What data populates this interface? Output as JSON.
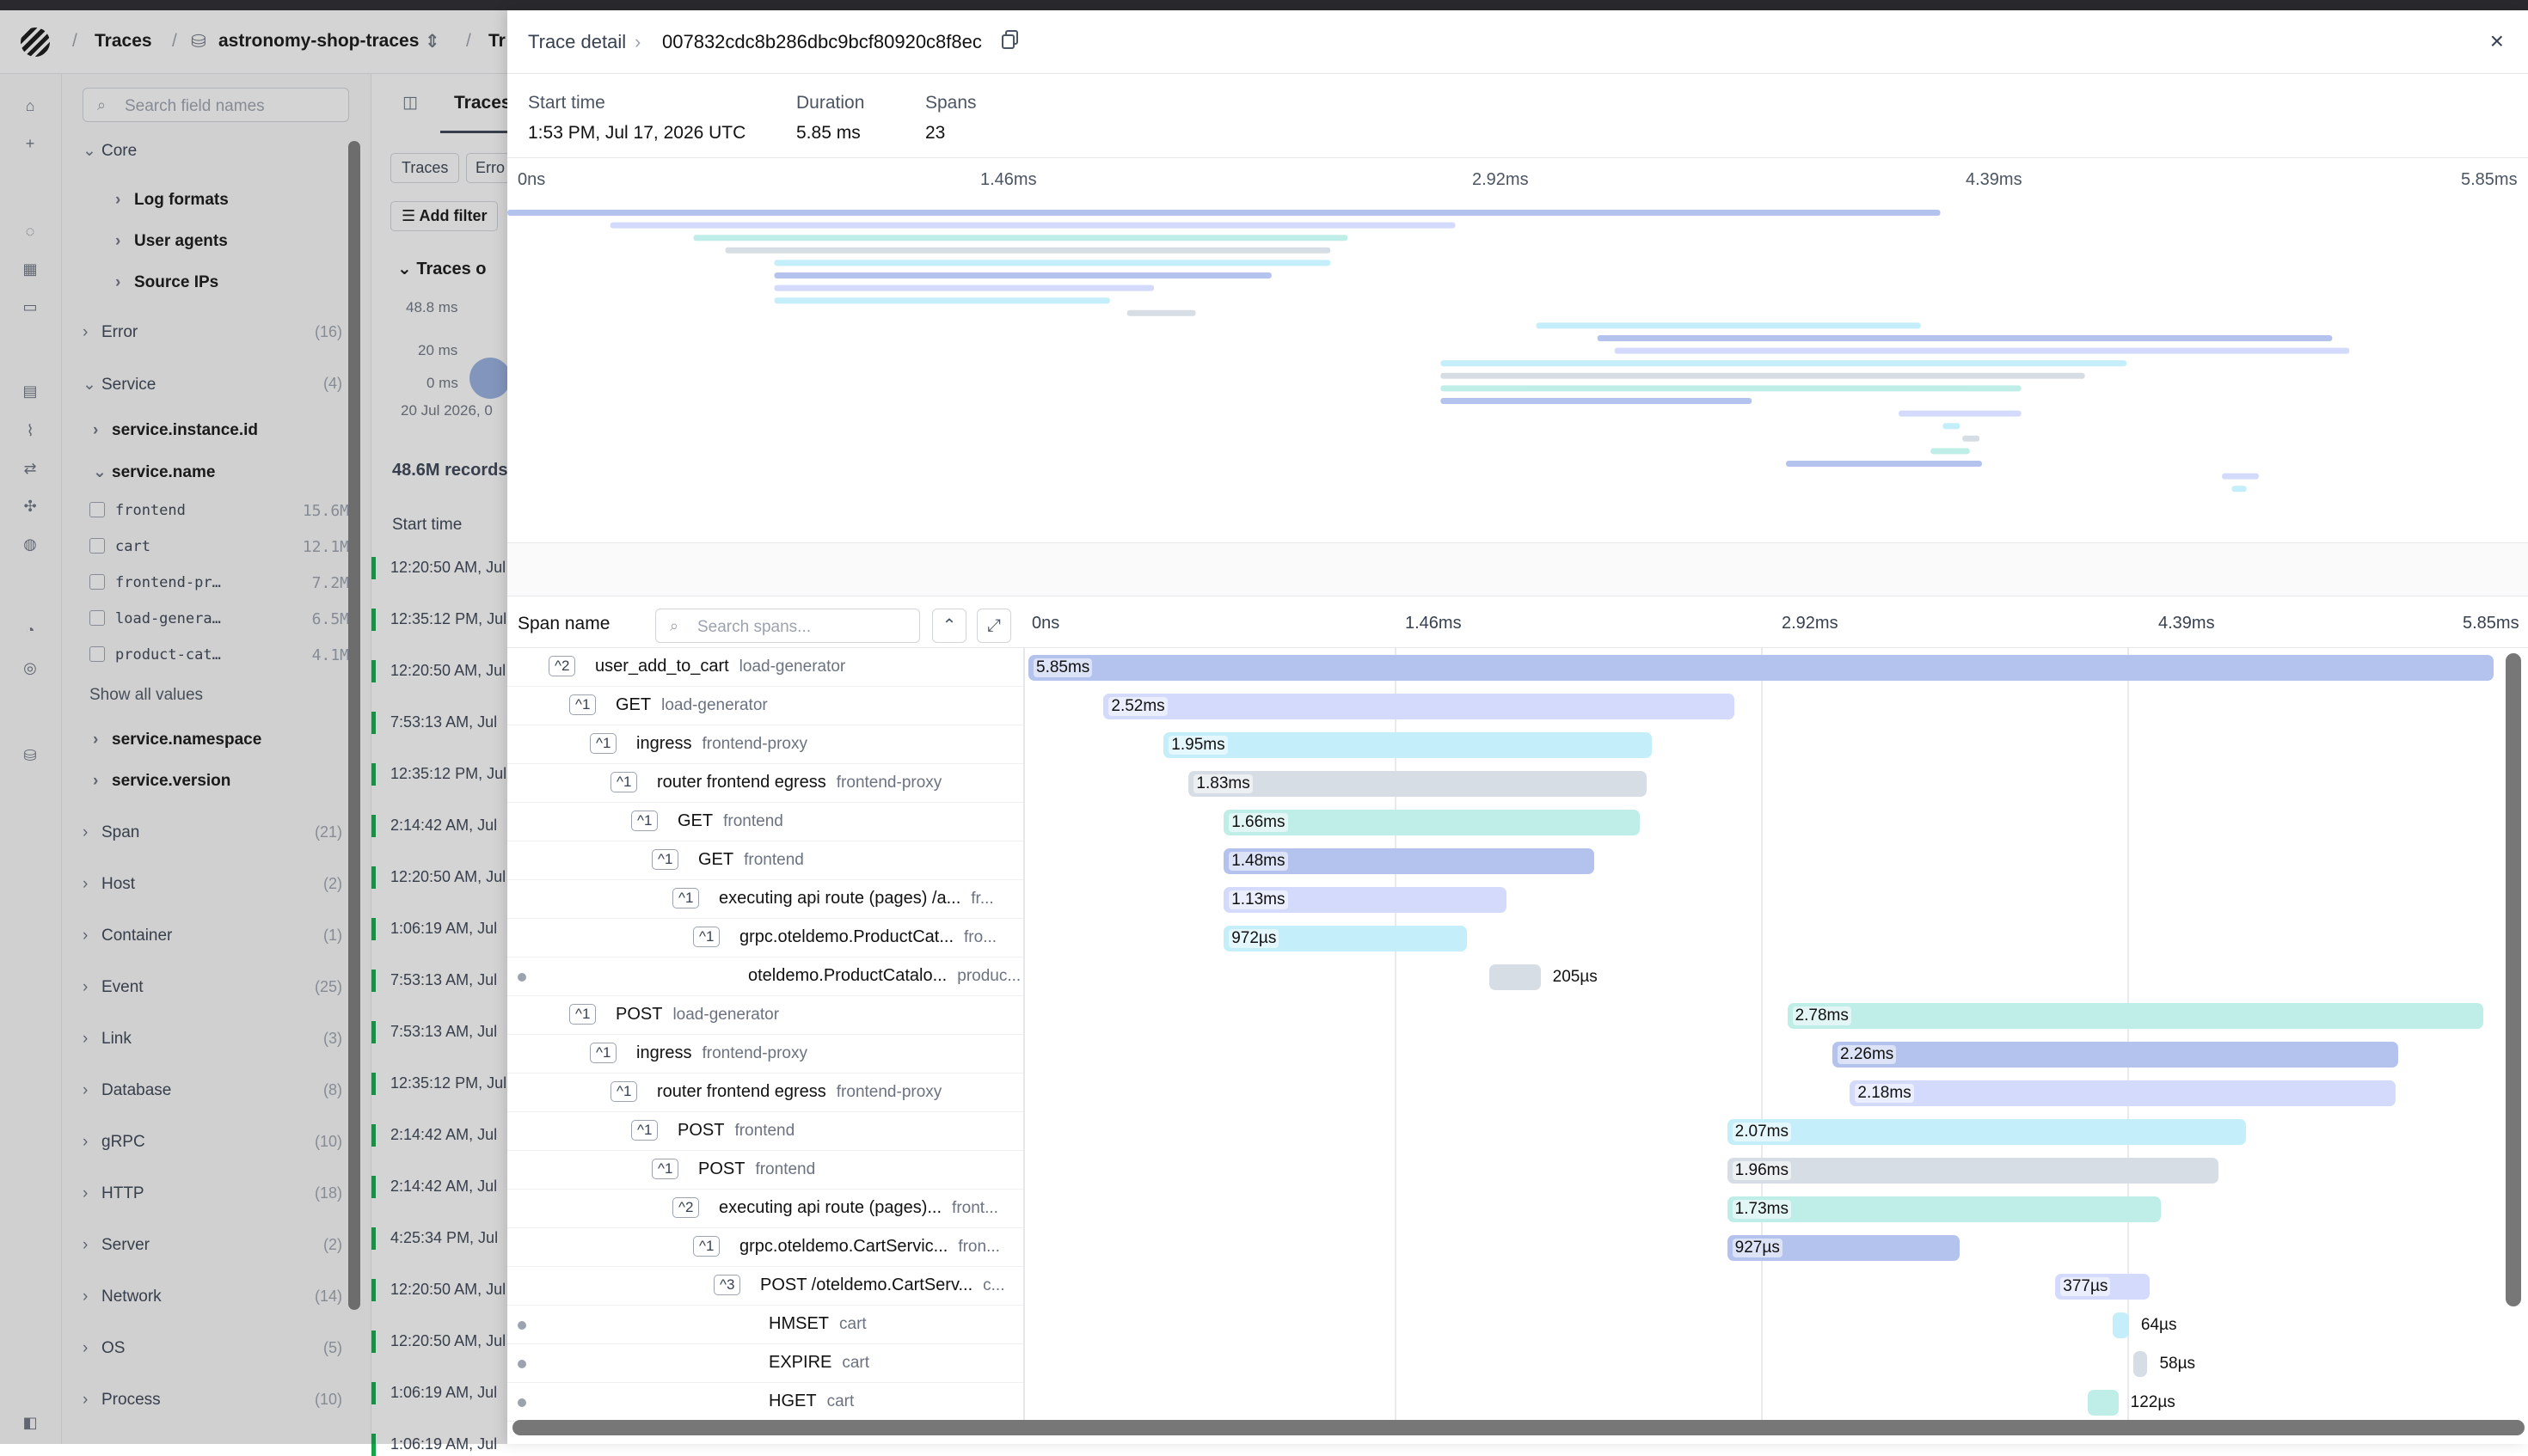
{
  "breadcrumb": {
    "traces": "Traces",
    "dataset": "astronomy-shop-traces",
    "next": "Tr"
  },
  "fields": {
    "search_placeholder": "Search field names",
    "groups": [
      {
        "label": "Core",
        "count": "",
        "open": true
      },
      {
        "label": "Error",
        "count": "(16)"
      },
      {
        "label": "Service",
        "count": "(4)",
        "open": true
      },
      {
        "label": "Span",
        "count": "(21)"
      },
      {
        "label": "Host",
        "count": "(2)"
      },
      {
        "label": "Container",
        "count": "(1)"
      },
      {
        "label": "Event",
        "count": "(25)"
      },
      {
        "label": "Link",
        "count": "(3)"
      },
      {
        "label": "Database",
        "count": "(8)"
      },
      {
        "label": "gRPC",
        "count": "(10)"
      },
      {
        "label": "HTTP",
        "count": "(18)"
      },
      {
        "label": "Server",
        "count": "(2)"
      },
      {
        "label": "Network",
        "count": "(14)"
      },
      {
        "label": "OS",
        "count": "(5)"
      },
      {
        "label": "Process",
        "count": "(10)"
      }
    ],
    "core_items": [
      "Log formats",
      "User agents",
      "Source IPs"
    ],
    "service_items": [
      "service.instance.id",
      "service.name",
      "service.namespace",
      "service.version"
    ],
    "service_values": [
      {
        "name": "frontend",
        "count": "15.6M"
      },
      {
        "name": "cart",
        "count": "12.1M"
      },
      {
        "name": "frontend-pr…",
        "count": "7.2M"
      },
      {
        "name": "load-genera…",
        "count": "6.5M"
      },
      {
        "name": "product-cat…",
        "count": "4.1M"
      }
    ],
    "show_all": "Show all values"
  },
  "middle": {
    "tab": "Traces",
    "chip1": "Traces",
    "chip2": "Erro",
    "add_filter": "Add filter",
    "overview": "Traces o",
    "y1": "48.8 ms",
    "y2": "20 ms",
    "y3": "0 ms",
    "xdate": "20 Jul 2026, 0",
    "records": "48.6M records",
    "col": "Start time",
    "times": [
      "12:20:50 AM, Jul",
      "12:35:12 PM, Jul",
      "12:20:50 AM, Jul",
      "7:53:13 AM, Jul",
      "12:35:12 PM, Jul",
      "2:14:42 AM, Jul",
      "12:20:50 AM, Jul",
      "1:06:19 AM, Jul",
      "7:53:13 AM, Jul",
      "7:53:13 AM, Jul",
      "12:35:12 PM, Jul",
      "2:14:42 AM, Jul",
      "2:14:42 AM, Jul",
      "4:25:34 PM, Jul",
      "12:20:50 AM, Jul",
      "12:20:50 AM, Jul",
      "1:06:19 AM, Jul",
      "1:06:19 AM, Jul"
    ]
  },
  "panel": {
    "title": "Trace detail",
    "trace_id": "007832cdc8b286dbc9bcf80920c8f8ec",
    "start_label": "Start time",
    "start_value": "1:53 PM, Jul 17, 2026 UTC",
    "duration_label": "Duration",
    "duration_value": "5.85 ms",
    "spans_label": "Spans",
    "spans_value": "23",
    "minimap_ticks": [
      "0ns",
      "1.46ms",
      "2.92ms",
      "4.39ms",
      "5.85ms"
    ],
    "span_name_header": "Span name",
    "search_spans_placeholder": "Search spans...",
    "timeline_ticks": [
      "0ns",
      "1.46ms",
      "2.92ms",
      "4.39ms",
      "5.85ms"
    ],
    "total_ms": 5.85
  },
  "colors": {
    "blue": "#b4c2ee",
    "lavender": "#d3dafb",
    "cyan": "#c4eef9",
    "teal": "#bfeee8",
    "gray": "#d6dde4"
  },
  "spans": [
    {
      "name": "user_add_to_cart",
      "service": "load-generator",
      "depth": 0,
      "badge": "^2",
      "start": 0.0,
      "dur": 5.85,
      "label": "5.85ms",
      "color": "blue"
    },
    {
      "name": "GET",
      "service": "load-generator",
      "depth": 1,
      "badge": "^1",
      "start": 0.3,
      "dur": 2.52,
      "label": "2.52ms",
      "color": "lavender"
    },
    {
      "name": "ingress",
      "service": "frontend-proxy",
      "depth": 2,
      "badge": "^1",
      "start": 0.54,
      "dur": 1.95,
      "label": "1.95ms",
      "color": "cyan"
    },
    {
      "name": "router frontend egress",
      "service": "frontend-proxy",
      "depth": 3,
      "badge": "^1",
      "start": 0.64,
      "dur": 1.83,
      "label": "1.83ms",
      "color": "gray"
    },
    {
      "name": "GET",
      "service": "frontend",
      "depth": 4,
      "badge": "^1",
      "start": 0.78,
      "dur": 1.66,
      "label": "1.66ms",
      "color": "teal"
    },
    {
      "name": "GET",
      "service": "frontend",
      "depth": 5,
      "badge": "^1",
      "start": 0.78,
      "dur": 1.48,
      "label": "1.48ms",
      "color": "blue"
    },
    {
      "name": "executing api route (pages) /a...",
      "service": "fr...",
      "depth": 6,
      "badge": "^1",
      "start": 0.78,
      "dur": 1.13,
      "label": "1.13ms",
      "color": "lavender"
    },
    {
      "name": "grpc.oteldemo.ProductCat...",
      "service": "fro...",
      "depth": 7,
      "badge": "^1",
      "start": 0.78,
      "dur": 0.972,
      "label": "972µs",
      "color": "cyan"
    },
    {
      "name": "oteldemo.ProductCatalo...",
      "service": "produc...",
      "depth": 8,
      "badge": "",
      "start": 1.84,
      "dur": 0.205,
      "label": "205µs",
      "color": "gray"
    },
    {
      "name": "POST",
      "service": "load-generator",
      "depth": 1,
      "badge": "^1",
      "start": 3.03,
      "dur": 2.78,
      "label": "2.78ms",
      "color": "teal"
    },
    {
      "name": "ingress",
      "service": "frontend-proxy",
      "depth": 2,
      "badge": "^1",
      "start": 3.21,
      "dur": 2.26,
      "label": "2.26ms",
      "color": "blue"
    },
    {
      "name": "router frontend egress",
      "service": "frontend-proxy",
      "depth": 3,
      "badge": "^1",
      "start": 3.28,
      "dur": 2.18,
      "label": "2.18ms",
      "color": "lavender"
    },
    {
      "name": "POST",
      "service": "frontend",
      "depth": 4,
      "badge": "^1",
      "start": 2.79,
      "dur": 2.07,
      "label": "2.07ms",
      "color": "cyan"
    },
    {
      "name": "POST",
      "service": "frontend",
      "depth": 5,
      "badge": "^1",
      "start": 2.79,
      "dur": 1.96,
      "label": "1.96ms",
      "color": "gray"
    },
    {
      "name": "executing api route (pages)...",
      "service": "front...",
      "depth": 6,
      "badge": "^2",
      "start": 2.79,
      "dur": 1.73,
      "label": "1.73ms",
      "color": "teal"
    },
    {
      "name": "grpc.oteldemo.CartServic...",
      "service": "fron...",
      "depth": 7,
      "badge": "^1",
      "start": 2.79,
      "dur": 0.927,
      "label": "927µs",
      "color": "blue"
    },
    {
      "name": "POST /oteldemo.CartServ...",
      "service": "c...",
      "depth": 8,
      "badge": "^3",
      "start": 4.1,
      "dur": 0.377,
      "label": "377µs",
      "color": "lavender"
    },
    {
      "name": "HMSET",
      "service": "cart",
      "depth": 9,
      "badge": "",
      "start": 4.33,
      "dur": 0.064,
      "label": "64µs",
      "color": "cyan"
    },
    {
      "name": "EXPIRE",
      "service": "cart",
      "depth": 9,
      "badge": "",
      "start": 4.41,
      "dur": 0.058,
      "label": "58µs",
      "color": "gray"
    },
    {
      "name": "HGET",
      "service": "cart",
      "depth": 9,
      "badge": "",
      "start": 4.23,
      "dur": 0.122,
      "label": "122µs",
      "color": "teal"
    }
  ],
  "minimap_extra": [
    {
      "start": 0.0,
      "dur": 5.85,
      "color": "blue"
    },
    {
      "start": 0.42,
      "dur": 3.45,
      "color": "lavender"
    },
    {
      "start": 0.76,
      "dur": 2.67,
      "color": "teal"
    },
    {
      "start": 0.89,
      "dur": 2.47,
      "color": "gray"
    },
    {
      "start": 1.09,
      "dur": 2.27,
      "color": "cyan"
    },
    {
      "start": 1.09,
      "dur": 2.03,
      "color": "blue"
    },
    {
      "start": 1.09,
      "dur": 1.55,
      "color": "lavender"
    },
    {
      "start": 1.09,
      "dur": 1.37,
      "color": "cyan"
    },
    {
      "start": 2.53,
      "dur": 0.28,
      "color": "gray"
    },
    {
      "start": 4.2,
      "dur": 1.57,
      "color": "cyan"
    },
    {
      "start": 4.45,
      "dur": 3.0,
      "color": "blue"
    },
    {
      "start": 4.52,
      "dur": 3.0,
      "color": "lavender"
    },
    {
      "start": 3.81,
      "dur": 2.8,
      "color": "cyan"
    },
    {
      "start": 3.81,
      "dur": 2.63,
      "color": "gray"
    },
    {
      "start": 3.81,
      "dur": 2.37,
      "color": "teal"
    },
    {
      "start": 3.81,
      "dur": 1.27,
      "color": "blue"
    },
    {
      "start": 5.68,
      "dur": 0.5,
      "color": "lavender"
    },
    {
      "start": 5.86,
      "dur": 0.07,
      "color": "cyan"
    },
    {
      "start": 5.94,
      "dur": 0.07,
      "color": "gray"
    },
    {
      "start": 5.81,
      "dur": 0.16,
      "color": "teal"
    },
    {
      "start": 5.22,
      "dur": 0.8,
      "color": "blue"
    },
    {
      "start": 7.0,
      "dur": 0.15,
      "color": "lavender"
    },
    {
      "start": 7.04,
      "dur": 0.06,
      "color": "cyan"
    }
  ]
}
